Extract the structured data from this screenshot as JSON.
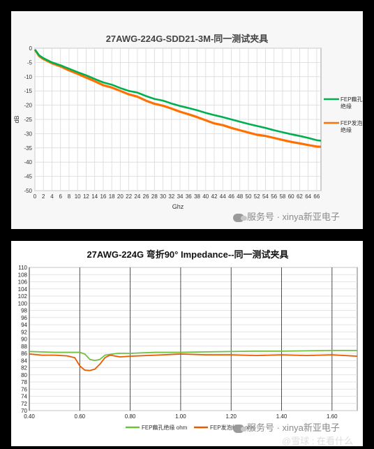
{
  "chart_data": [
    {
      "type": "line",
      "title": "27AWG-224G-SDD21-3M-同一测试夹具",
      "xlabel": "Ghz",
      "ylabel": "dB",
      "xlim": [
        0,
        67
      ],
      "ylim": [
        -50,
        0
      ],
      "grid": true,
      "legend_position": "right",
      "x_ticks": [
        0,
        2,
        4,
        6,
        8,
        10,
        12,
        14,
        16,
        18,
        20,
        22,
        24,
        26,
        28,
        30,
        32,
        34,
        36,
        38,
        40,
        42,
        44,
        46,
        48,
        50,
        52,
        54,
        56,
        58,
        60,
        62,
        64,
        66
      ],
      "y_ticks": [
        0,
        -5,
        -10,
        -15,
        -20,
        -25,
        -30,
        -35,
        -40,
        -45,
        -50
      ],
      "series": [
        {
          "name": "FEP藕孔绝缘",
          "color": "#00b050",
          "x": [
            0,
            1,
            2,
            4,
            6,
            8,
            10,
            12,
            14,
            16,
            18,
            20,
            22,
            24,
            26,
            28,
            30,
            32,
            34,
            36,
            38,
            40,
            42,
            44,
            46,
            48,
            50,
            52,
            54,
            56,
            58,
            60,
            62,
            64,
            66,
            67
          ],
          "y": [
            -0.5,
            -2.5,
            -3.5,
            -5,
            -6,
            -7.2,
            -8.4,
            -9.5,
            -10.8,
            -12,
            -12.8,
            -14,
            -15,
            -15.6,
            -16.8,
            -17.8,
            -18.4,
            -19.4,
            -20.3,
            -21,
            -21.8,
            -22.7,
            -23.5,
            -24.2,
            -25,
            -25.8,
            -26.6,
            -27.3,
            -28,
            -28.8,
            -29.5,
            -30.2,
            -30.8,
            -31.5,
            -32.3,
            -32.5
          ]
        },
        {
          "name": "FEP发泡绝缘",
          "color": "#ff7000",
          "x": [
            0,
            1,
            2,
            4,
            6,
            8,
            10,
            12,
            14,
            16,
            18,
            20,
            22,
            24,
            26,
            28,
            30,
            32,
            34,
            36,
            38,
            40,
            42,
            44,
            46,
            48,
            50,
            52,
            54,
            56,
            58,
            60,
            62,
            64,
            66,
            67
          ],
          "y": [
            -0.5,
            -2.8,
            -3.8,
            -5.3,
            -6.4,
            -7.8,
            -9,
            -10.3,
            -11.6,
            -13,
            -13.8,
            -15,
            -16.2,
            -17,
            -18.4,
            -19.5,
            -20.2,
            -21.2,
            -22.3,
            -23.2,
            -24.2,
            -25.3,
            -26.4,
            -27,
            -28,
            -28.8,
            -29.6,
            -30.4,
            -30.8,
            -31.5,
            -32.2,
            -32.9,
            -33.4,
            -34,
            -34.5,
            -34.6
          ]
        }
      ]
    },
    {
      "type": "line",
      "title": "27AWG-224G 弯折90° Impedance--同一测试夹具",
      "xlabel": "",
      "ylabel": "",
      "xlim": [
        0.4,
        1.7
      ],
      "ylim": [
        70,
        110
      ],
      "grid": true,
      "legend_position": "bottom",
      "x_ticks": [
        "0.40",
        "0.60",
        "0.80",
        "1.00",
        "1.20",
        "1.40",
        "1.60"
      ],
      "y_ticks": [
        110,
        108,
        106,
        104,
        102,
        100,
        98,
        96,
        94,
        92,
        90,
        88,
        86,
        84,
        82,
        80,
        78,
        76,
        74,
        72,
        70
      ],
      "series": [
        {
          "name": "FEP藕孔绝缘 ohm",
          "color": "#70c040",
          "x": [
            0.4,
            0.5,
            0.6,
            0.62,
            0.64,
            0.66,
            0.68,
            0.7,
            0.75,
            0.8,
            0.9,
            1.0,
            1.1,
            1.2,
            1.3,
            1.4,
            1.5,
            1.6,
            1.7
          ],
          "y": [
            86.5,
            86.3,
            86.3,
            85.8,
            84.3,
            84,
            84.3,
            85.5,
            86,
            86,
            86.3,
            86.3,
            86.4,
            86.5,
            86.6,
            86.6,
            86.7,
            86.8,
            86.8
          ]
        },
        {
          "name": "FEP发泡绝缘 ohm",
          "color": "#e85a00",
          "x": [
            0.4,
            0.45,
            0.5,
            0.55,
            0.58,
            0.6,
            0.62,
            0.64,
            0.66,
            0.68,
            0.7,
            0.72,
            0.76,
            0.8,
            0.9,
            1.0,
            1.1,
            1.2,
            1.3,
            1.4,
            1.5,
            1.6,
            1.7
          ],
          "y": [
            85.8,
            85.5,
            85.5,
            85.3,
            84.8,
            82.5,
            81.3,
            81.2,
            81.6,
            83,
            84.8,
            85.5,
            85,
            85.2,
            85.5,
            85.8,
            85.6,
            85.6,
            85.4,
            85.6,
            85.4,
            85.6,
            85.2
          ]
        }
      ]
    }
  ],
  "watermark": {
    "text": "服务号 · xinya新亚电子"
  },
  "site_watermark": {
    "text": "@雪球 : 在看什么"
  }
}
